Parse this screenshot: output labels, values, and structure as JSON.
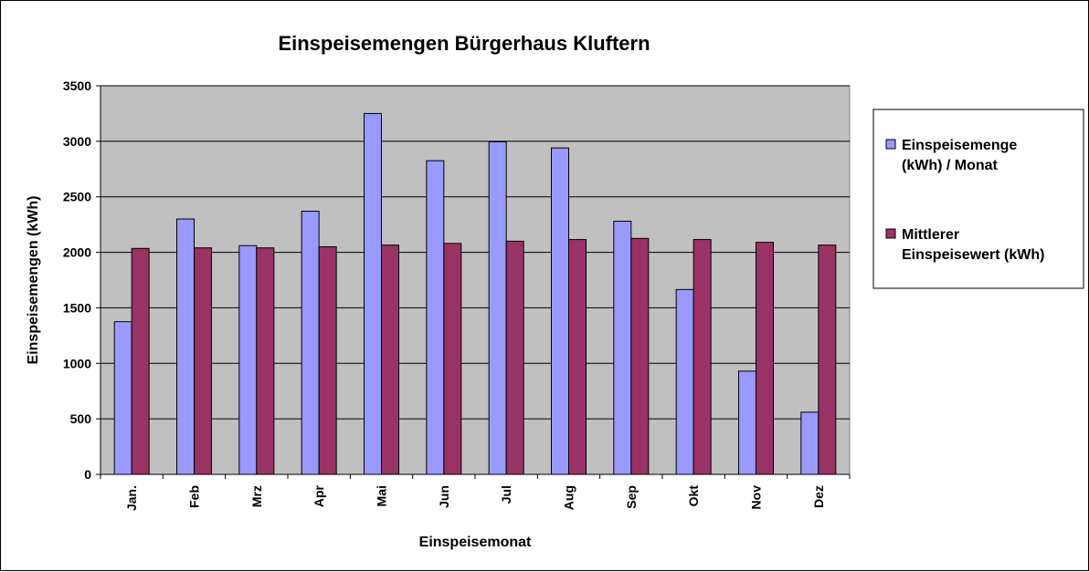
{
  "chart_data": {
    "type": "bar",
    "title": "Einspeisemengen Bürgerhaus Kluftern",
    "xlabel": "Einspeisemonat",
    "ylabel": "Einspeisemengen (kWh)",
    "ylim": [
      0,
      3500
    ],
    "yticks": [
      "0",
      "500",
      "1000",
      "1500",
      "2000",
      "2500",
      "3000",
      "3500"
    ],
    "categories": [
      "Jan.",
      "Feb",
      "Mrz",
      "Apr",
      "Mai",
      "Jun",
      "Jul",
      "Aug",
      "Sep",
      "Okt",
      "Nov",
      "Dez"
    ],
    "grid": true,
    "legend_position": "right",
    "series": [
      {
        "name_lines": [
          "Einspeisemenge",
          "(kWh) / Monat"
        ],
        "color": "#9999ff",
        "values": [
          1375,
          2300,
          2060,
          2370,
          3250,
          2825,
          2995,
          2940,
          2280,
          1665,
          930,
          560
        ]
      },
      {
        "name_lines": [
          "Mittlerer",
          "Einspeisewert (kWh)"
        ],
        "color": "#993366",
        "values": [
          2035,
          2040,
          2040,
          2050,
          2065,
          2080,
          2100,
          2115,
          2125,
          2115,
          2090,
          2065
        ]
      }
    ],
    "plot_background": "#c0c0c0"
  }
}
